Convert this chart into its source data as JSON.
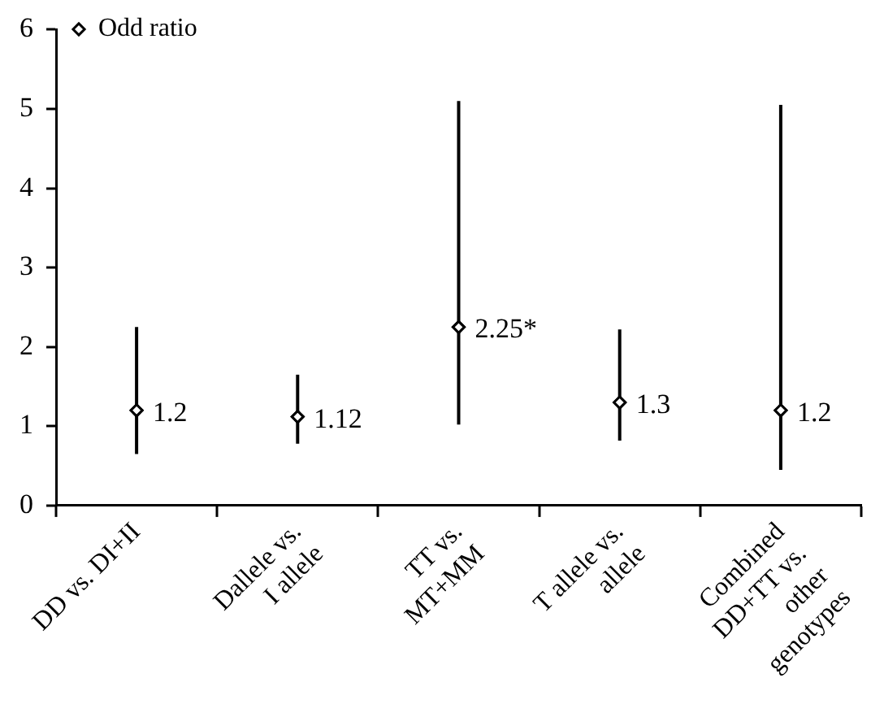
{
  "chart_data": {
    "type": "scatter",
    "categories": [
      "DD vs. DI+II",
      "Dallele vs.\nI allele",
      "TT vs.\nMT+MM",
      "T allele vs.\nallele",
      "Combined\nDD+TT vs.\nother\ngenotypes"
    ],
    "series": [
      {
        "name": "Odd ratio",
        "color": "#000000",
        "values": [
          1.2,
          1.12,
          2.25,
          1.3,
          1.2
        ],
        "errors": [
          [
            0.65,
            2.25
          ],
          [
            0.78,
            1.65
          ],
          [
            1.02,
            5.1
          ],
          [
            0.82,
            2.22
          ],
          [
            0.45,
            5.05
          ]
        ],
        "value_labels": [
          "1.2",
          "1.12",
          "2.25*",
          "1.3",
          "1.2"
        ]
      }
    ],
    "ylim": [
      0,
      6
    ],
    "yticks": [
      0,
      1,
      2,
      3,
      4,
      5,
      6
    ],
    "grid": false,
    "legend": "top left",
    "marker": "diamond"
  }
}
